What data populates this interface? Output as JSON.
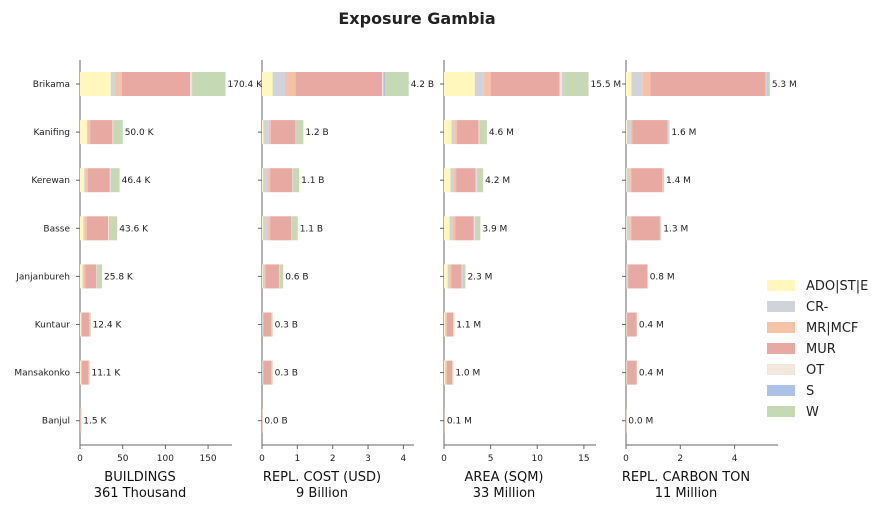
{
  "chart_data": {
    "type": "bar",
    "orientation": "horizontal",
    "stacked": true,
    "title": "Exposure Gambia",
    "categories": [
      "Brikama",
      "Kanifing",
      "Kerewan",
      "Basse",
      "Janjanbureh",
      "Kuntaur",
      "Mansakonko",
      "Banjul"
    ],
    "legend": {
      "placement": "right",
      "entries": [
        {
          "name": "ADO|ST|E",
          "color": "#fff7bc"
        },
        {
          "name": "CR-",
          "color": "#d0d3da"
        },
        {
          "name": "MR|MCF",
          "color": "#f6c2a7"
        },
        {
          "name": "MUR",
          "color": "#e8a9a3"
        },
        {
          "name": "OT",
          "color": "#f3e6da"
        },
        {
          "name": "S",
          "color": "#aec2e8"
        },
        {
          "name": "W",
          "color": "#c5d9b4"
        }
      ]
    },
    "panels": [
      {
        "xlabel": "BUILDINGS",
        "total_label": "361 Thousand",
        "xlim": [
          0,
          178
        ],
        "xticks": [
          0,
          50,
          100,
          150
        ],
        "tick_labels": [
          "0",
          "50",
          "100",
          "150"
        ],
        "totals_text": [
          "170.4 K",
          "50.0 K",
          "46.4 K",
          "43.6 K",
          "25.8 K",
          "12.4 K",
          "11.1 K",
          "1.5 K"
        ],
        "series": [
          {
            "name": "ADO|ST|E",
            "values": [
              36,
              8,
              5,
              4,
              3,
              1,
              1,
              0.3
            ]
          },
          {
            "name": "CR-",
            "values": [
              5,
              1,
              1,
              1,
              1,
              0.3,
              0.3,
              0.1
            ]
          },
          {
            "name": "MR|MCF",
            "values": [
              8,
              3,
              3,
              3,
              2,
              1,
              1,
              0.2
            ]
          },
          {
            "name": "MUR",
            "values": [
              80,
              26,
              26,
              25,
              13,
              9,
              8,
              0.6
            ]
          },
          {
            "name": "OT",
            "values": [
              2,
              1,
              1,
              1,
              0.5,
              0.3,
              0.3,
              0.1
            ]
          },
          {
            "name": "S",
            "values": [
              0.4,
              0.2,
              0.2,
              0.2,
              0.1,
              0.1,
              0.1,
              0
            ]
          },
          {
            "name": "W",
            "values": [
              39,
              10.8,
              10.2,
              9.4,
              6.2,
              0.7,
              0.4,
              0.2
            ]
          }
        ]
      },
      {
        "xlabel": "REPL. COST (USD)",
        "total_label": "9 Billion",
        "xlim": [
          0,
          4.3
        ],
        "xticks": [
          0,
          1,
          2,
          3,
          4
        ],
        "tick_labels": [
          "0",
          "1",
          "2",
          "3",
          "4"
        ],
        "totals_text": [
          "4.2 B",
          "1.2 B",
          "1.1 B",
          "1.1 B",
          "0.6 B",
          "0.3 B",
          "0.3 B",
          "0.0 B"
        ],
        "series": [
          {
            "name": "ADO|ST|E",
            "values": [
              0.3,
              0.04,
              0.03,
              0.03,
              0.02,
              0.01,
              0.01,
              0
            ]
          },
          {
            "name": "CR-",
            "values": [
              0.35,
              0.15,
              0.14,
              0.14,
              0.05,
              0.02,
              0.02,
              0
            ]
          },
          {
            "name": "MR|MCF",
            "values": [
              0.3,
              0.06,
              0.06,
              0.06,
              0.03,
              0.01,
              0.01,
              0
            ]
          },
          {
            "name": "MUR",
            "values": [
              2.45,
              0.7,
              0.62,
              0.6,
              0.38,
              0.23,
              0.23,
              0.01
            ]
          },
          {
            "name": "OT",
            "values": [
              0.03,
              0.01,
              0.01,
              0.01,
              0.01,
              0.01,
              0.01,
              0
            ]
          },
          {
            "name": "S",
            "values": [
              0.05,
              0.01,
              0.01,
              0.01,
              0.01,
              0,
              0,
              0
            ]
          },
          {
            "name": "W",
            "values": [
              0.67,
              0.2,
              0.18,
              0.16,
              0.1,
              0.02,
              0.02,
              0
            ]
          }
        ]
      },
      {
        "xlabel": "AREA (SQM)",
        "total_label": "33 Million",
        "xlim": [
          0,
          16.3
        ],
        "xticks": [
          0,
          5,
          10,
          15
        ],
        "tick_labels": [
          "0",
          "5",
          "10",
          "15"
        ],
        "totals_text": [
          "15.5 M",
          "4.6 M",
          "4.2 M",
          "3.9 M",
          "2.3 M",
          "1.1 M",
          "1.0 M",
          "0.1 M"
        ],
        "series": [
          {
            "name": "ADO|ST|E",
            "values": [
              3.3,
              0.8,
              0.7,
              0.6,
              0.4,
              0.1,
              0.1,
              0
            ]
          },
          {
            "name": "CR-",
            "values": [
              1.0,
              0.3,
              0.3,
              0.3,
              0.2,
              0.1,
              0.1,
              0
            ]
          },
          {
            "name": "MR|MCF",
            "values": [
              0.7,
              0.3,
              0.3,
              0.3,
              0.2,
              0.1,
              0.1,
              0
            ]
          },
          {
            "name": "MUR",
            "values": [
              7.4,
              2.3,
              2.1,
              2.0,
              1.1,
              0.7,
              0.6,
              0.05
            ]
          },
          {
            "name": "OT",
            "values": [
              0.3,
              0.1,
              0.1,
              0.1,
              0.05,
              0.05,
              0.05,
              0
            ]
          },
          {
            "name": "S",
            "values": [
              0.1,
              0.05,
              0.05,
              0.05,
              0.05,
              0,
              0,
              0
            ]
          },
          {
            "name": "W",
            "values": [
              2.7,
              0.75,
              0.65,
              0.55,
              0.3,
              0.05,
              0.05,
              0.05
            ]
          }
        ]
      },
      {
        "xlabel": "REPL. CARBON TON",
        "total_label": "11 Million",
        "xlim": [
          0,
          5.6
        ],
        "xticks": [
          0,
          2,
          4
        ],
        "tick_labels": [
          "0",
          "2",
          "4"
        ],
        "totals_text": [
          "5.3 M",
          "1.6 M",
          "1.4 M",
          "1.3 M",
          "0.8 M",
          "0.4 M",
          "0.4 M",
          "0.0 M"
        ],
        "series": [
          {
            "name": "ADO|ST|E",
            "values": [
              0.2,
              0.03,
              0.02,
              0.02,
              0.01,
              0.01,
              0.01,
              0
            ]
          },
          {
            "name": "CR-",
            "values": [
              0.4,
              0.15,
              0.13,
              0.13,
              0.05,
              0.02,
              0.02,
              0
            ]
          },
          {
            "name": "MR|MCF",
            "values": [
              0.3,
              0.06,
              0.05,
              0.05,
              0.02,
              0.01,
              0.01,
              0
            ]
          },
          {
            "name": "MUR",
            "values": [
              4.25,
              1.3,
              1.15,
              1.05,
              0.7,
              0.35,
              0.35,
              0.01
            ]
          },
          {
            "name": "OT",
            "values": [
              0.02,
              0.02,
              0.02,
              0.02,
              0.01,
              0.01,
              0.01,
              0
            ]
          },
          {
            "name": "S",
            "values": [
              0.05,
              0.01,
              0.01,
              0.01,
              0.01,
              0,
              0,
              0
            ]
          },
          {
            "name": "W",
            "values": [
              0.08,
              0.03,
              0.02,
              0.02,
              0,
              0,
              0,
              0
            ]
          }
        ]
      }
    ]
  }
}
